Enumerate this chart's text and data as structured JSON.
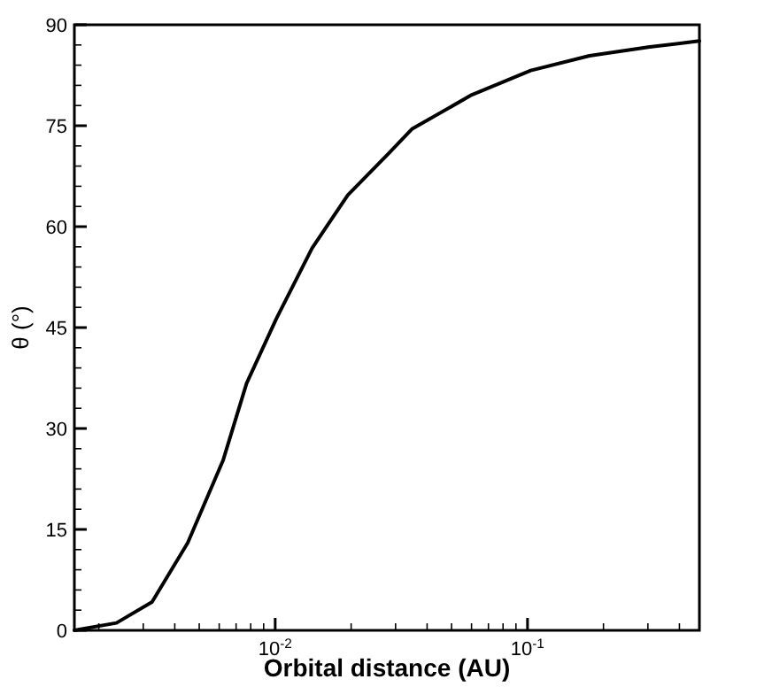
{
  "chart_data": {
    "type": "line",
    "xlabel": "Orbital distance (AU)",
    "ylabel": "θ (°)",
    "log": "x",
    "xlim": [
      0.0016,
      0.48
    ],
    "ylim": [
      0,
      90
    ],
    "xticks": [
      {
        "value": 0.002,
        "label": null
      },
      {
        "value": 0.003,
        "label": null
      },
      {
        "value": 0.004,
        "label": null
      },
      {
        "value": 0.005,
        "label": null
      },
      {
        "value": 0.006,
        "label": null
      },
      {
        "value": 0.007,
        "label": null
      },
      {
        "value": 0.008,
        "label": null
      },
      {
        "value": 0.009,
        "label": null
      },
      {
        "value": 0.01,
        "label": "10$^{-2}$"
      },
      {
        "value": 0.02,
        "label": null
      },
      {
        "value": 0.03,
        "label": null
      },
      {
        "value": 0.04,
        "label": null
      },
      {
        "value": 0.05,
        "label": null
      },
      {
        "value": 0.06,
        "label": null
      },
      {
        "value": 0.07,
        "label": null
      },
      {
        "value": 0.08,
        "label": null
      },
      {
        "value": 0.09,
        "label": null
      },
      {
        "value": 0.1,
        "label": "10$^{-1}$"
      },
      {
        "value": 0.2,
        "label": null
      },
      {
        "value": 0.3,
        "label": null
      },
      {
        "value": 0.4,
        "label": null
      }
    ],
    "yticks": [
      0,
      {
        "value": 3,
        "label": null
      },
      {
        "value": 6,
        "label": null
      },
      {
        "value": 9,
        "label": null
      },
      {
        "value": 12,
        "label": null
      },
      15,
      {
        "value": 18,
        "label": null
      },
      {
        "value": 21,
        "label": null
      },
      {
        "value": 24,
        "label": null
      },
      {
        "value": 27,
        "label": null
      },
      30,
      {
        "value": 33,
        "label": null
      },
      {
        "value": 36,
        "label": null
      },
      {
        "value": 39,
        "label": null
      },
      {
        "value": 42,
        "label": null
      },
      45,
      {
        "value": 48,
        "label": null
      },
      {
        "value": 51,
        "label": null
      },
      {
        "value": 54,
        "label": null
      },
      {
        "value": 57,
        "label": null
      },
      60,
      {
        "value": 63,
        "label": null
      },
      {
        "value": 66,
        "label": null
      },
      {
        "value": 69,
        "label": null
      },
      {
        "value": 72,
        "label": null
      },
      75,
      {
        "value": 78,
        "label": null
      },
      {
        "value": 81,
        "label": null
      },
      {
        "value": 84,
        "label": null
      },
      {
        "value": 87,
        "label": null
      },
      90
    ],
    "grid": false,
    "marker": "none",
    "line_style": "solid",
    "series": [
      {
        "color": "#000000",
        "x": [
          0.0016,
          0.00235,
          0.00325,
          0.0045,
          0.00622,
          0.0077,
          0.0101,
          0.014,
          0.0194,
          0.0282,
          0.0348,
          0.0602,
          0.103,
          0.176,
          0.305,
          0.48
        ],
        "values": [
          0,
          1.1,
          4.2,
          13,
          25.3,
          36.7,
          46.3,
          56.8,
          64.7,
          70.9,
          74.5,
          79.6,
          83.2,
          85.4,
          86.7,
          87.6
        ]
      }
    ]
  }
}
